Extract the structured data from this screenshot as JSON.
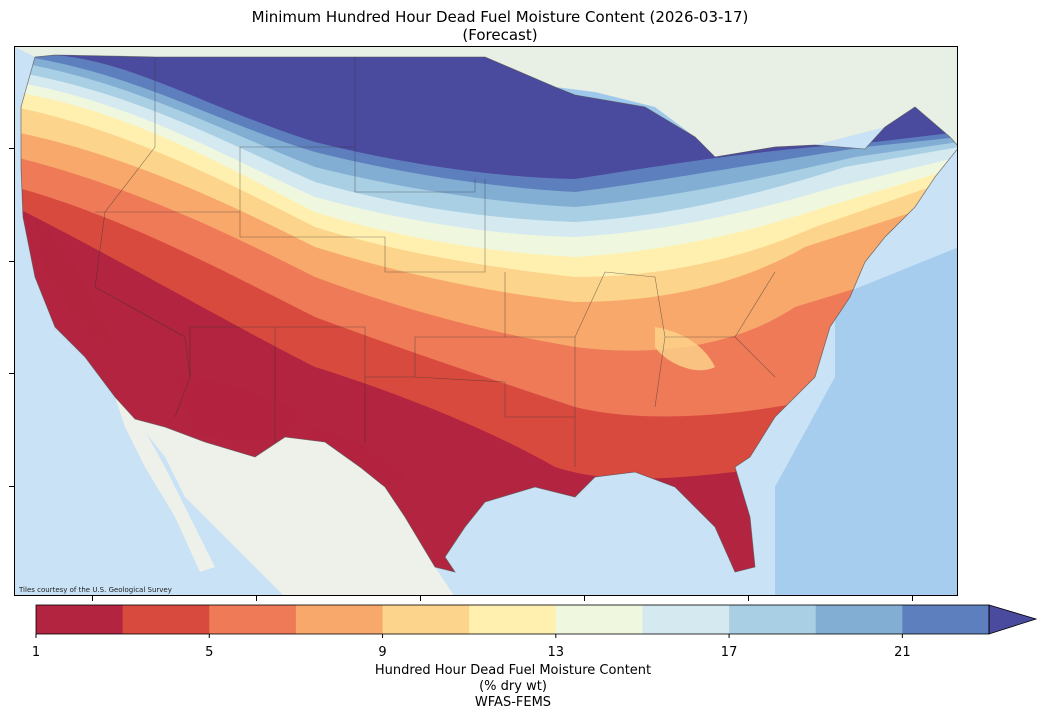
{
  "title_line1": "Minimum Hundred Hour Dead Fuel Moisture Content (2026-03-17)",
  "title_line2": "(Forecast)",
  "attribution": "Tiles courtesy of the U.S. Geological Survey",
  "colorbar": {
    "label_line1": "Hundred Hour Dead Fuel Moisture Content",
    "label_line2": "(% dry wt)",
    "label_line3": "WFAS-FEMS",
    "tick_labels": [
      "1",
      "5",
      "9",
      "13",
      "17",
      "21"
    ],
    "tick_values": [
      1,
      5,
      9,
      13,
      17,
      21
    ],
    "range": [
      1,
      23
    ],
    "extend": "max",
    "colors": [
      "#b2243f",
      "#d84a3e",
      "#ef7a58",
      "#f7a86a",
      "#fdd48b",
      "#fff0b0",
      "#eff7df",
      "#d5e9f1",
      "#a9cfe4",
      "#82aed3",
      "#5e7fbd",
      "#4a4a9f"
    ]
  },
  "map_colors": {
    "ocean": "#c9e2f5",
    "ocean_deep": "#a6cdee",
    "land_outside": "#eef0ea",
    "canada": "#e8efe4",
    "lakes": "#9fc9ec"
  }
}
